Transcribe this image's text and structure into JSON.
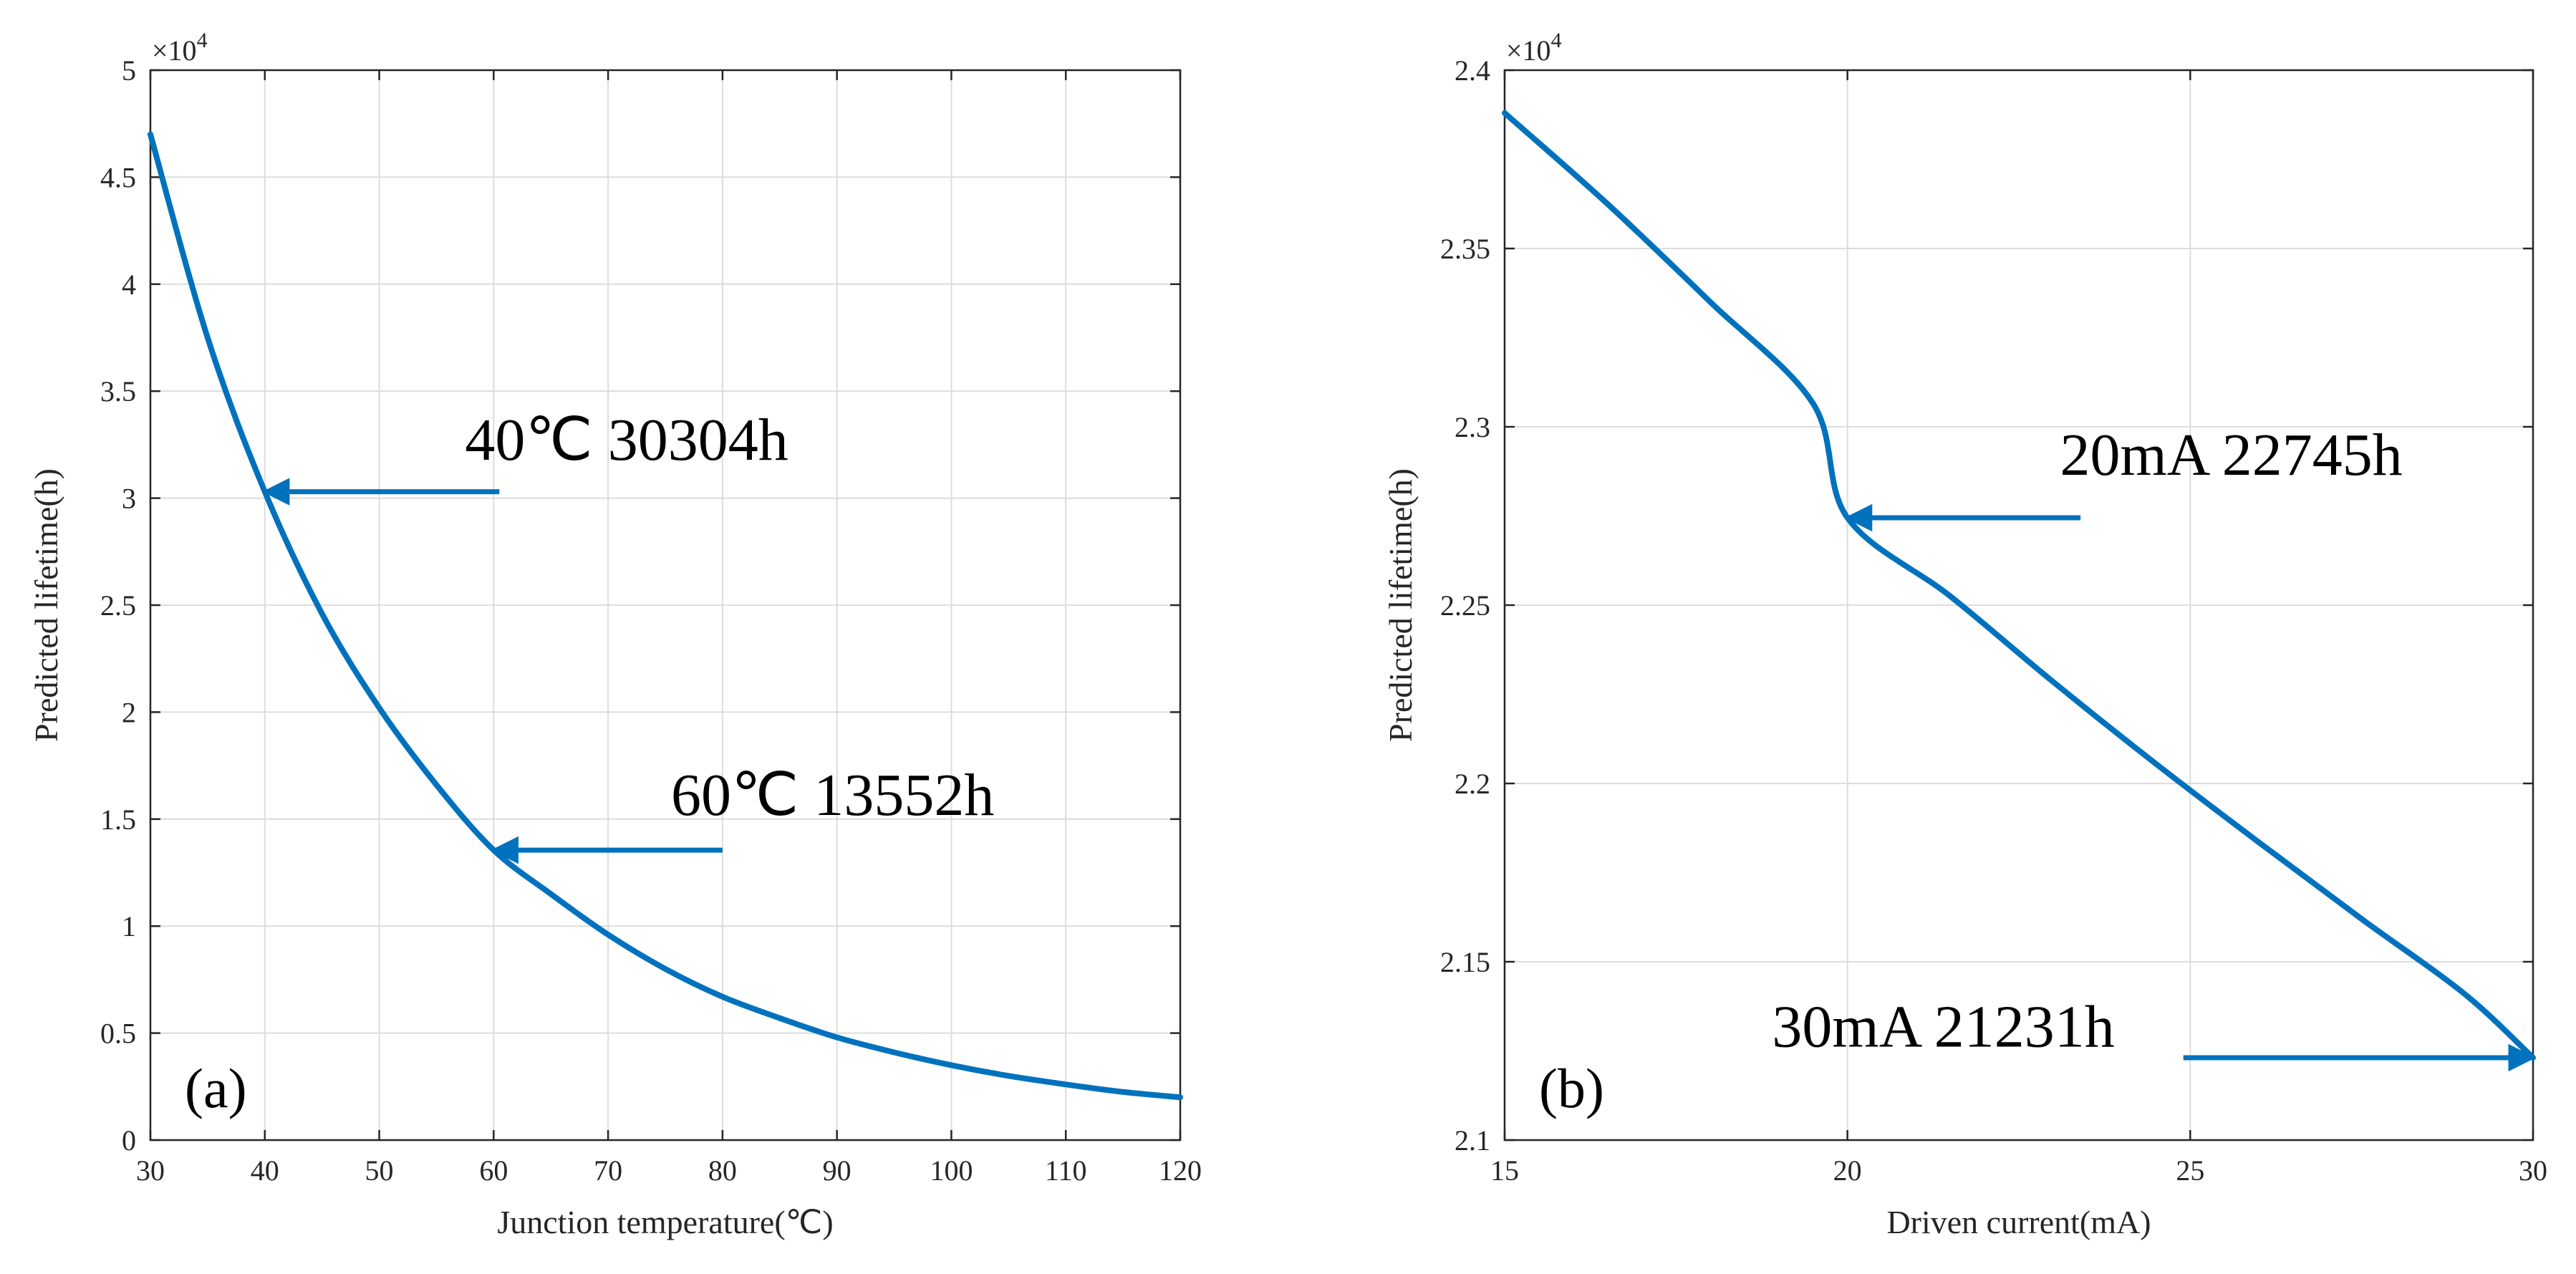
{
  "chart_data": [
    {
      "type": "line",
      "panel_label": "(a)",
      "xlabel": "Junction temperature(℃)",
      "ylabel": "Predicted lifetime(h)",
      "xlim": [
        30,
        120
      ],
      "ylim": [
        0,
        5
      ],
      "x_ticks": [
        30,
        40,
        50,
        60,
        70,
        80,
        90,
        100,
        110,
        120
      ],
      "x_tick_labels": [
        "30",
        "40",
        "50",
        "60",
        "70",
        "80",
        "90",
        "100",
        "110",
        "120"
      ],
      "y_ticks": [
        0,
        0.5,
        1,
        1.5,
        2,
        2.5,
        3,
        3.5,
        4,
        4.5,
        5
      ],
      "y_tick_labels": [
        "0",
        "0.5",
        "1",
        "1.5",
        "2",
        "2.5",
        "3",
        "3.5",
        "4",
        "4.5",
        "5"
      ],
      "y_multiplier": {
        "base": "×10",
        "exponent": "4"
      },
      "grid": true,
      "line_color": "#0072BD",
      "series": [
        {
          "name": "Predicted lifetime",
          "x": [
            30,
            35,
            40,
            45,
            50,
            55,
            60,
            65,
            70,
            75,
            80,
            85,
            90,
            95,
            100,
            105,
            110,
            115,
            120
          ],
          "y": [
            4.7,
            3.75,
            3.03,
            2.46,
            2.02,
            1.66,
            1.3552,
            1.15,
            0.96,
            0.8,
            0.67,
            0.57,
            0.48,
            0.41,
            0.35,
            0.3,
            0.26,
            0.225,
            0.2
          ]
        }
      ],
      "annotations": [
        {
          "text": "40℃  30304h",
          "target_x": 40,
          "target_y": 3.03,
          "tail_x": 60.5,
          "tail_y": 3.03,
          "text_x": 57.5,
          "text_y": 3.18
        },
        {
          "text": "60℃  13552h",
          "target_x": 60,
          "target_y": 1.3552,
          "tail_x": 80,
          "tail_y": 1.3552,
          "text_x": 75.5,
          "text_y": 1.52
        }
      ]
    },
    {
      "type": "line",
      "panel_label": "(b)",
      "xlabel": "Driven current(mA)",
      "ylabel": "Predicted lifetime(h)",
      "xlim": [
        15,
        30
      ],
      "ylim": [
        2.1,
        2.4
      ],
      "x_ticks": [
        15,
        20,
        25,
        30
      ],
      "x_tick_labels": [
        "15",
        "20",
        "25",
        "30"
      ],
      "y_ticks": [
        2.1,
        2.15,
        2.2,
        2.25,
        2.3,
        2.35,
        2.4
      ],
      "y_tick_labels": [
        "2.1",
        "2.15",
        "2.2",
        "2.25",
        "2.3",
        "2.35",
        "2.4"
      ],
      "y_multiplier": {
        "base": "×10",
        "exponent": "4"
      },
      "grid": true,
      "line_color": "#0072BD",
      "series": [
        {
          "name": "Predicted lifetime",
          "x": [
            15,
            16.5,
            18,
            19.5,
            20,
            21.5,
            23,
            24.5,
            26,
            27.5,
            29,
            30
          ],
          "y": [
            2.388,
            2.3625,
            2.335,
            2.3065,
            2.2745,
            2.2525,
            2.2285,
            2.2055,
            2.1835,
            2.162,
            2.141,
            2.1231
          ]
        }
      ],
      "annotations": [
        {
          "text": "20mA  22745h",
          "target_x": 20,
          "target_y": 2.2745,
          "tail_x": 23.4,
          "tail_y": 2.2745,
          "text_x": 23.1,
          "text_y": 2.2865
        },
        {
          "text": "30mA  21231h",
          "target_x": 30,
          "target_y": 2.1231,
          "tail_x": 24.9,
          "tail_y": 2.1231,
          "text_x": 18.9,
          "text_y": 2.1262
        }
      ]
    }
  ]
}
